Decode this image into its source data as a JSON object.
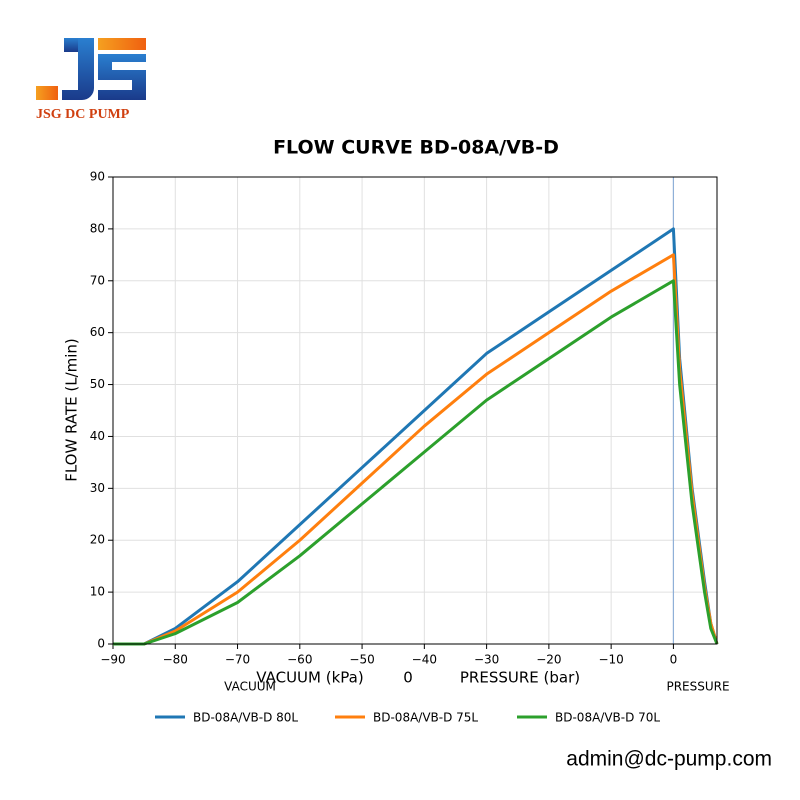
{
  "logo": {
    "text": "JSG DC PUMP"
  },
  "chart_data": {
    "type": "line",
    "title": "FLOW CURVE  BD-08A/VB-D",
    "y_label": "FLOW RATE (L/min)",
    "annotations": [
      "VACUUM (kPa)",
      "0",
      "PRESSURE (bar)",
      "VACUUM",
      "PRESSURE"
    ],
    "x": [
      -90,
      -85,
      -80,
      -70,
      -60,
      -50,
      -40,
      -30,
      -20,
      -10,
      0,
      1,
      3,
      5,
      6,
      7
    ],
    "series": [
      {
        "name": "BD-08A/VB-D 80L",
        "color": "#1f77b4",
        "values": [
          0,
          0,
          3,
          12,
          23,
          34,
          45,
          56,
          64,
          72,
          80,
          55,
          30,
          12,
          4,
          0
        ]
      },
      {
        "name": "BD-08A/VB-D 75L",
        "color": "#ff7f0e",
        "values": [
          0,
          0,
          2.5,
          10,
          20,
          31,
          42,
          52,
          60,
          68,
          75,
          53,
          29,
          11,
          4,
          0
        ]
      },
      {
        "name": "BD-08A/VB-D 70L",
        "color": "#2ca02c",
        "values": [
          0,
          0,
          2,
          8,
          17,
          27,
          37,
          47,
          55,
          63,
          70,
          50,
          27,
          10,
          3,
          0
        ]
      }
    ],
    "xlim": [
      -90,
      7
    ],
    "ylim": [
      0,
      90
    ],
    "xticks": [
      {
        "value": -90,
        "label": "−90"
      },
      {
        "value": -80,
        "label": "−80"
      },
      {
        "value": -70,
        "label": "−70"
      },
      {
        "value": -60,
        "label": "−60"
      },
      {
        "value": -50,
        "label": "−50"
      },
      {
        "value": -40,
        "label": "−40"
      },
      {
        "value": -30,
        "label": "−30"
      },
      {
        "value": -20,
        "label": "−20"
      },
      {
        "value": -10,
        "label": "−10"
      },
      0
    ],
    "yticks": [
      0,
      10,
      20,
      30,
      40,
      50,
      60,
      70,
      80,
      90
    ],
    "vline": 0,
    "grid": true,
    "legend": "bottom"
  },
  "footer": {
    "email": "admin@dc-pump.com"
  }
}
